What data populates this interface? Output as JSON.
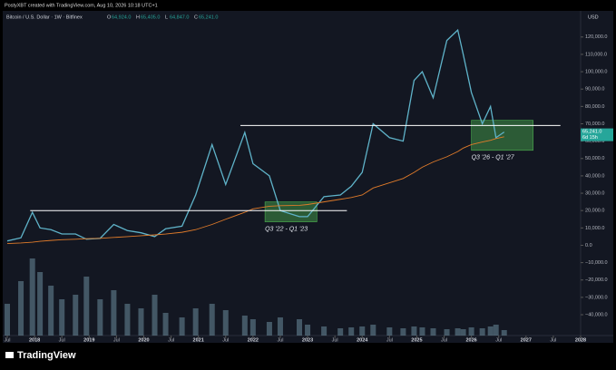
{
  "header": "PostyXBT created with TradingView.com, Aug 10, 2026 10:18 UTC+1",
  "footer": "TradingView",
  "chart_data": {
    "type": "line",
    "title": "Bitcoin / U.S. Dollar · 1W · Bitfinex",
    "ohlc": [
      {
        "label": "O",
        "value": "64,924.0"
      },
      {
        "label": "H",
        "value": "65,405.0"
      },
      {
        "label": "L",
        "value": "64,847.0"
      },
      {
        "label": "C",
        "value": "65,241.0"
      }
    ],
    "currency": "USD",
    "x": [
      2017.5,
      2017.75,
      2017.96,
      2018.1,
      2018.3,
      2018.5,
      2018.75,
      2018.95,
      2019.2,
      2019.45,
      2019.7,
      2019.95,
      2020.2,
      2020.4,
      2020.7,
      2020.95,
      2021.25,
      2021.5,
      2021.85,
      2022.0,
      2022.3,
      2022.5,
      2022.85,
      2023.0,
      2023.3,
      2023.6,
      2023.8,
      2024.0,
      2024.2,
      2024.5,
      2024.75,
      2024.95,
      2025.1,
      2025.3,
      2025.55,
      2025.75,
      2025.85,
      2026.0,
      2026.2,
      2026.35,
      2026.45,
      2026.6
    ],
    "series": [
      {
        "color": "#5fb3c9",
        "values": [
          2500,
          4300,
          19000,
          10000,
          9000,
          6500,
          6500,
          3500,
          4000,
          12000,
          8500,
          7200,
          5000,
          9500,
          11000,
          29000,
          58000,
          35000,
          65000,
          47000,
          40000,
          20000,
          16500,
          16500,
          28000,
          29000,
          34000,
          42000,
          70000,
          62000,
          60000,
          95000,
          100000,
          85000,
          118000,
          124000,
          110000,
          88000,
          70000,
          80000,
          62000,
          65241
        ]
      },
      {
        "color": "#e07b2a",
        "values": [
          1000,
          1300,
          1800,
          2300,
          2800,
          3200,
          3500,
          3800,
          4000,
          4500,
          5000,
          5500,
          6000,
          6500,
          7500,
          9000,
          12000,
          15000,
          19000,
          21000,
          22500,
          22800,
          23000,
          23500,
          25000,
          26500,
          27500,
          29000,
          33000,
          36000,
          38500,
          42000,
          45000,
          48000,
          51000,
          54000,
          56000,
          58000,
          59500,
          60500,
          61500,
          62500
        ]
      }
    ],
    "volume": {
      "color": "#7fa6b8",
      "vlim": [
        0,
        100
      ],
      "values": [
        35,
        60,
        85,
        70,
        55,
        40,
        45,
        65,
        40,
        50,
        35,
        30,
        45,
        25,
        20,
        30,
        35,
        28,
        22,
        18,
        15,
        20,
        18,
        12,
        10,
        8,
        9,
        10,
        12,
        9,
        8,
        10,
        9,
        8,
        7,
        8,
        7,
        9,
        8,
        10,
        12,
        6
      ]
    },
    "price_label": {
      "value": 65241,
      "label": "65,241.0",
      "countdown": "6d 15h"
    },
    "levels": [
      {
        "value": 20000,
        "x": [
          2017.92,
          2023.72
        ]
      },
      {
        "value": 69000,
        "x": [
          2021.77,
          2027.63
        ]
      }
    ],
    "zones": [
      {
        "x": [
          2022.22,
          2023.17
        ],
        "y": [
          13500,
          25000
        ],
        "label": "Q3 '22 - Q1 '23"
      },
      {
        "x": [
          2026.0,
          2027.13
        ],
        "y": [
          54700,
          72000
        ],
        "label": "Q3 '26 - Q1 '27"
      }
    ],
    "xlim": [
      2017.45,
      2028.0
    ],
    "xticks": [
      {
        "value": 2017.5,
        "label": "Jul"
      },
      2018,
      {
        "value": 2018.5,
        "label": "Jul"
      },
      2019,
      {
        "value": 2019.5,
        "label": "Jul"
      },
      2020,
      {
        "value": 2020.5,
        "label": "Jul"
      },
      2021,
      {
        "value": 2021.5,
        "label": "Jul"
      },
      2022,
      {
        "value": 2022.5,
        "label": "Jul"
      },
      2023,
      {
        "value": 2023.5,
        "label": "Jul"
      },
      2024,
      {
        "value": 2024.5,
        "label": "Jul"
      },
      2025,
      {
        "value": 2025.5,
        "label": "Jul"
      },
      2026,
      {
        "value": 2026.5,
        "label": "Jul"
      },
      2027,
      {
        "value": 2027.5,
        "label": "Jul"
      },
      2028
    ],
    "ylim": [
      -52000,
      134000
    ],
    "yticks": [
      {
        "value": 120000,
        "label": "120,000.0"
      },
      {
        "value": 110000,
        "label": "110,000.0"
      },
      {
        "value": 100000,
        "label": "100,000.0"
      },
      {
        "value": 90000,
        "label": "90,000.0"
      },
      {
        "value": 80000,
        "label": "80,000.0"
      },
      {
        "value": 70000,
        "label": "70,000.0"
      },
      {
        "value": 60000,
        "label": "60,000.0"
      },
      {
        "value": 50000,
        "label": "50,000.0"
      },
      {
        "value": 40000,
        "label": "40,000.0"
      },
      {
        "value": 30000,
        "label": "30,000.0"
      },
      {
        "value": 20000,
        "label": "20,000.0"
      },
      {
        "value": 10000,
        "label": "10,000.0"
      },
      {
        "value": 0,
        "label": "0.0"
      },
      {
        "value": -10000,
        "label": "−10,000.0"
      },
      {
        "value": -20000,
        "label": "−20,000.0"
      },
      {
        "value": -30000,
        "label": "−30,000.0"
      },
      {
        "value": -40000,
        "label": "−40,000.0"
      }
    ],
    "grid": false
  }
}
